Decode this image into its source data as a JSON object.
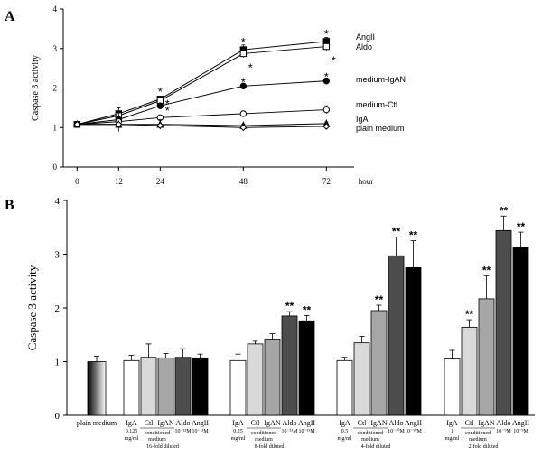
{
  "panel_a_label": "A",
  "panel_b_label": "B",
  "chart_data": [
    {
      "panel": "A",
      "type": "line",
      "ylabel": "Caspase 3 activity",
      "xunit": "hour",
      "ylim": [
        0,
        4
      ],
      "yticks": [
        "0",
        "1",
        "2",
        "3",
        "4"
      ],
      "x": [
        0,
        12,
        24,
        48,
        72
      ],
      "xticks": [
        "0",
        "12",
        "24",
        "48",
        "72"
      ],
      "series": [
        {
          "name": "AngII",
          "marker": "filled-square",
          "values": [
            1.08,
            1.35,
            1.72,
            2.97,
            3.18
          ],
          "err": [
            0.03,
            0.06,
            0.06,
            0.12,
            0.1
          ],
          "stars": [
            false,
            false,
            true,
            true,
            true
          ]
        },
        {
          "name": "Aldo",
          "marker": "open-square",
          "values": [
            1.08,
            1.3,
            1.68,
            2.87,
            3.05
          ],
          "err": [
            0.03,
            0.05,
            0.06,
            0.1,
            0.1
          ],
          "stars": [
            false,
            false,
            true,
            true,
            true
          ]
        },
        {
          "name": "medium-IgAN",
          "marker": "filled-circle",
          "values": [
            1.08,
            1.2,
            1.55,
            2.05,
            2.18
          ],
          "err": [
            0.03,
            0.3,
            0.05,
            0.06,
            0.07
          ],
          "stars": [
            false,
            false,
            true,
            true,
            true
          ]
        },
        {
          "name": "medium-Ctl",
          "marker": "open-circle",
          "values": [
            1.08,
            1.15,
            1.25,
            1.35,
            1.45
          ],
          "err": [
            0.03,
            0.1,
            0.06,
            0.06,
            0.1
          ],
          "stars": [
            false,
            false,
            false,
            false,
            false
          ]
        },
        {
          "name": "IgA",
          "marker": "filled-triangle",
          "values": [
            1.08,
            1.08,
            1.08,
            1.05,
            1.1
          ],
          "err": [
            0.03,
            0.04,
            0.12,
            0.04,
            0.04
          ],
          "stars": [
            false,
            false,
            false,
            false,
            false
          ]
        },
        {
          "name": "plain medium",
          "marker": "open-diamond",
          "values": [
            1.08,
            1.08,
            1.05,
            1.0,
            1.03
          ],
          "err": [
            0.03,
            0.03,
            0.04,
            0.03,
            0.03
          ],
          "stars": [
            false,
            false,
            false,
            false,
            false
          ]
        }
      ]
    },
    {
      "panel": "B",
      "type": "bar",
      "ylabel": "Caspase 3 activity",
      "ylim": [
        0,
        4
      ],
      "yticks": [
        "0",
        "1",
        "2",
        "3",
        "4"
      ],
      "control": {
        "label": "plain medium",
        "value": 1.0,
        "err": 0.1
      },
      "groups": [
        {
          "iga_dose": [
            "0.125",
            "mg/ml"
          ],
          "conc": "10⁻¹³M",
          "dilution": "16-fold diluted",
          "conditioned": "conditioned",
          "medium": "medium",
          "labels": [
            "IgA",
            "Ctl",
            "IgAN",
            "Aldo",
            "AngII"
          ],
          "values": [
            1.02,
            1.08,
            1.07,
            1.08,
            1.07
          ],
          "err": [
            0.1,
            0.25,
            0.08,
            0.16,
            0.07
          ],
          "stars": [
            "",
            "",
            "",
            "",
            ""
          ]
        },
        {
          "iga_dose": [
            "0.25",
            "mg/ml"
          ],
          "conc": "10⁻¹¹M",
          "dilution": "8-fold diluted",
          "conditioned": "conditioned",
          "medium": "medium",
          "labels": [
            "IgA",
            "Ctl",
            "IgAN",
            "Aldo",
            "AngII"
          ],
          "values": [
            1.02,
            1.33,
            1.42,
            1.85,
            1.76
          ],
          "err": [
            0.12,
            0.05,
            0.1,
            0.08,
            0.1
          ],
          "stars": [
            "",
            "",
            "",
            "**",
            "**"
          ]
        },
        {
          "iga_dose": [
            "0.5",
            "mg/ml"
          ],
          "conc": "10⁻¹⁰M",
          "dilution": "4-fold diluted",
          "conditioned": "conditioned",
          "medium": "medium",
          "labels": [
            "IgA",
            "Ctl",
            "IgAN",
            "Aldo",
            "AngII"
          ],
          "values": [
            1.02,
            1.35,
            1.95,
            2.97,
            2.75
          ],
          "err": [
            0.06,
            0.12,
            0.1,
            0.35,
            0.5
          ],
          "stars": [
            "",
            "",
            "**",
            "**",
            "**"
          ]
        },
        {
          "iga_dose": [
            "1",
            "mg/ml"
          ],
          "conc": "10⁻⁹M",
          "dilution": "2-fold diluted",
          "conditioned": "conditioned",
          "medium": "medium",
          "labels": [
            "IgA",
            "Ctl",
            "IgAN",
            "Aldo",
            "AngII"
          ],
          "values": [
            1.05,
            1.64,
            2.17,
            3.44,
            3.13
          ],
          "err": [
            0.16,
            0.14,
            0.43,
            0.27,
            0.28
          ],
          "stars": [
            "",
            "**",
            "**",
            "**",
            "**"
          ]
        }
      ],
      "bar_colors": [
        "#ffffff",
        "#d9d9d9",
        "#a6a6a6",
        "#4d4d4d",
        "#000000"
      ]
    }
  ]
}
